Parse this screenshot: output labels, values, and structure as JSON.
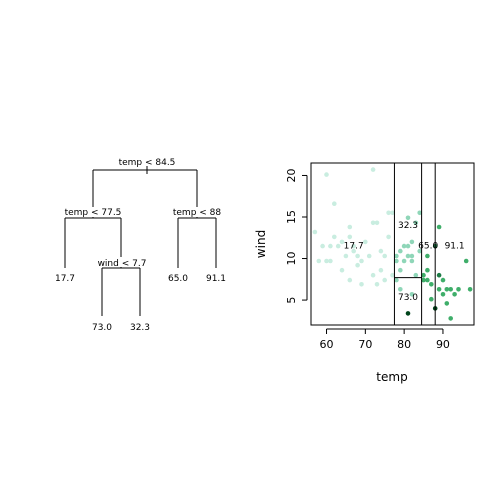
{
  "tree": {
    "root": {
      "label": "temp < 84.5"
    },
    "left": {
      "label": "temp < 77.5",
      "leaf": "17.7",
      "child": {
        "label": "wind < 7.7",
        "leaves": [
          "73.0",
          "32.3"
        ]
      }
    },
    "right": {
      "label": "temp < 88",
      "leaves": [
        "65.0",
        "91.1"
      ]
    }
  },
  "chart_data": {
    "type": "scatter",
    "xlabel": "temp",
    "ylabel": "wind",
    "xlim": [
      56,
      98
    ],
    "ylim": [
      2,
      21.5
    ],
    "xticks": [
      60,
      70,
      80,
      90
    ],
    "yticks": [
      5,
      10,
      15,
      20
    ],
    "splits": {
      "vertical": [
        77.5,
        84.5,
        88
      ],
      "horizontal": {
        "y": 7.7,
        "x_from": 77.5,
        "x_to": 84.5
      }
    },
    "region_labels": [
      {
        "text": "17.7",
        "x": 67,
        "y": 11.5
      },
      {
        "text": "32.3",
        "x": 81,
        "y": 14.0
      },
      {
        "text": "65.0",
        "x": 86.2,
        "y": 11.5
      },
      {
        "text": "91.1",
        "x": 93,
        "y": 11.5
      },
      {
        "text": "73.0",
        "x": 81,
        "y": 5.3
      }
    ],
    "colors": {
      "light": "#c9ede0",
      "mid": "#8fd6b8",
      "medium": "#3fae6a",
      "dark": "#1e7b46",
      "darkest": "#00441b"
    },
    "points": [
      {
        "x": 57,
        "y": 13.2,
        "c": "light"
      },
      {
        "x": 58,
        "y": 9.7,
        "c": "light"
      },
      {
        "x": 59,
        "y": 11.5,
        "c": "light"
      },
      {
        "x": 60,
        "y": 20.1,
        "c": "light"
      },
      {
        "x": 60,
        "y": 9.7,
        "c": "light"
      },
      {
        "x": 61,
        "y": 9.7,
        "c": "light"
      },
      {
        "x": 61,
        "y": 11.5,
        "c": "light"
      },
      {
        "x": 62,
        "y": 16.6,
        "c": "light"
      },
      {
        "x": 62,
        "y": 12.6,
        "c": "light"
      },
      {
        "x": 63,
        "y": 11.5,
        "c": "light"
      },
      {
        "x": 64,
        "y": 12.0,
        "c": "light"
      },
      {
        "x": 64,
        "y": 8.6,
        "c": "light"
      },
      {
        "x": 65,
        "y": 10.3,
        "c": "light"
      },
      {
        "x": 66,
        "y": 7.4,
        "c": "light"
      },
      {
        "x": 66,
        "y": 12.6,
        "c": "light"
      },
      {
        "x": 66,
        "y": 13.8,
        "c": "light"
      },
      {
        "x": 67,
        "y": 11.5,
        "c": "light"
      },
      {
        "x": 67,
        "y": 10.9,
        "c": "light"
      },
      {
        "x": 68,
        "y": 10.3,
        "c": "light"
      },
      {
        "x": 68,
        "y": 9.2,
        "c": "light"
      },
      {
        "x": 69,
        "y": 9.7,
        "c": "light"
      },
      {
        "x": 69,
        "y": 6.9,
        "c": "light"
      },
      {
        "x": 70,
        "y": 12.0,
        "c": "light"
      },
      {
        "x": 71,
        "y": 10.3,
        "c": "light"
      },
      {
        "x": 72,
        "y": 14.3,
        "c": "light"
      },
      {
        "x": 72,
        "y": 8.0,
        "c": "light"
      },
      {
        "x": 72,
        "y": 20.7,
        "c": "light"
      },
      {
        "x": 73,
        "y": 14.3,
        "c": "light"
      },
      {
        "x": 73,
        "y": 6.9,
        "c": "light"
      },
      {
        "x": 74,
        "y": 10.9,
        "c": "light"
      },
      {
        "x": 74,
        "y": 8.6,
        "c": "light"
      },
      {
        "x": 75,
        "y": 10.3,
        "c": "light"
      },
      {
        "x": 75,
        "y": 7.4,
        "c": "light"
      },
      {
        "x": 76,
        "y": 15.5,
        "c": "light"
      },
      {
        "x": 76,
        "y": 12.6,
        "c": "light"
      },
      {
        "x": 77,
        "y": 15.5,
        "c": "light"
      },
      {
        "x": 77,
        "y": 8.0,
        "c": "light"
      },
      {
        "x": 78,
        "y": 10.3,
        "c": "mid"
      },
      {
        "x": 78,
        "y": 9.7,
        "c": "mid"
      },
      {
        "x": 79,
        "y": 10.9,
        "c": "mid"
      },
      {
        "x": 79,
        "y": 8.6,
        "c": "mid"
      },
      {
        "x": 80,
        "y": 9.7,
        "c": "mid"
      },
      {
        "x": 80,
        "y": 11.5,
        "c": "mid"
      },
      {
        "x": 81,
        "y": 10.3,
        "c": "mid"
      },
      {
        "x": 81,
        "y": 14.9,
        "c": "mid"
      },
      {
        "x": 81,
        "y": 11.5,
        "c": "mid"
      },
      {
        "x": 82,
        "y": 9.7,
        "c": "mid"
      },
      {
        "x": 82,
        "y": 12.0,
        "c": "mid"
      },
      {
        "x": 82,
        "y": 10.3,
        "c": "mid"
      },
      {
        "x": 83,
        "y": 14.3,
        "c": "mid"
      },
      {
        "x": 83,
        "y": 8.0,
        "c": "mid"
      },
      {
        "x": 84,
        "y": 10.9,
        "c": "mid"
      },
      {
        "x": 84,
        "y": 15.5,
        "c": "mid"
      },
      {
        "x": 78,
        "y": 7.4,
        "c": "mid"
      },
      {
        "x": 79,
        "y": 6.3,
        "c": "mid"
      },
      {
        "x": 81,
        "y": 3.4,
        "c": "darkest"
      },
      {
        "x": 82,
        "y": 5.7,
        "c": "mid"
      },
      {
        "x": 85,
        "y": 8.0,
        "c": "medium"
      },
      {
        "x": 85,
        "y": 7.4,
        "c": "medium"
      },
      {
        "x": 86,
        "y": 8.6,
        "c": "medium"
      },
      {
        "x": 86,
        "y": 10.3,
        "c": "medium"
      },
      {
        "x": 86,
        "y": 7.4,
        "c": "medium"
      },
      {
        "x": 87,
        "y": 5.1,
        "c": "medium"
      },
      {
        "x": 87,
        "y": 6.9,
        "c": "medium"
      },
      {
        "x": 88,
        "y": 4.0,
        "c": "darkest"
      },
      {
        "x": 88,
        "y": 11.5,
        "c": "dark"
      },
      {
        "x": 89,
        "y": 13.8,
        "c": "medium"
      },
      {
        "x": 89,
        "y": 8.0,
        "c": "dark"
      },
      {
        "x": 89,
        "y": 6.3,
        "c": "medium"
      },
      {
        "x": 90,
        "y": 7.4,
        "c": "medium"
      },
      {
        "x": 90,
        "y": 5.7,
        "c": "medium"
      },
      {
        "x": 91,
        "y": 6.3,
        "c": "medium"
      },
      {
        "x": 91,
        "y": 4.6,
        "c": "medium"
      },
      {
        "x": 92,
        "y": 2.8,
        "c": "medium"
      },
      {
        "x": 92,
        "y": 6.3,
        "c": "medium"
      },
      {
        "x": 93,
        "y": 5.7,
        "c": "medium"
      },
      {
        "x": 94,
        "y": 6.3,
        "c": "medium"
      },
      {
        "x": 96,
        "y": 9.7,
        "c": "medium"
      },
      {
        "x": 97,
        "y": 6.3,
        "c": "medium"
      }
    ]
  }
}
